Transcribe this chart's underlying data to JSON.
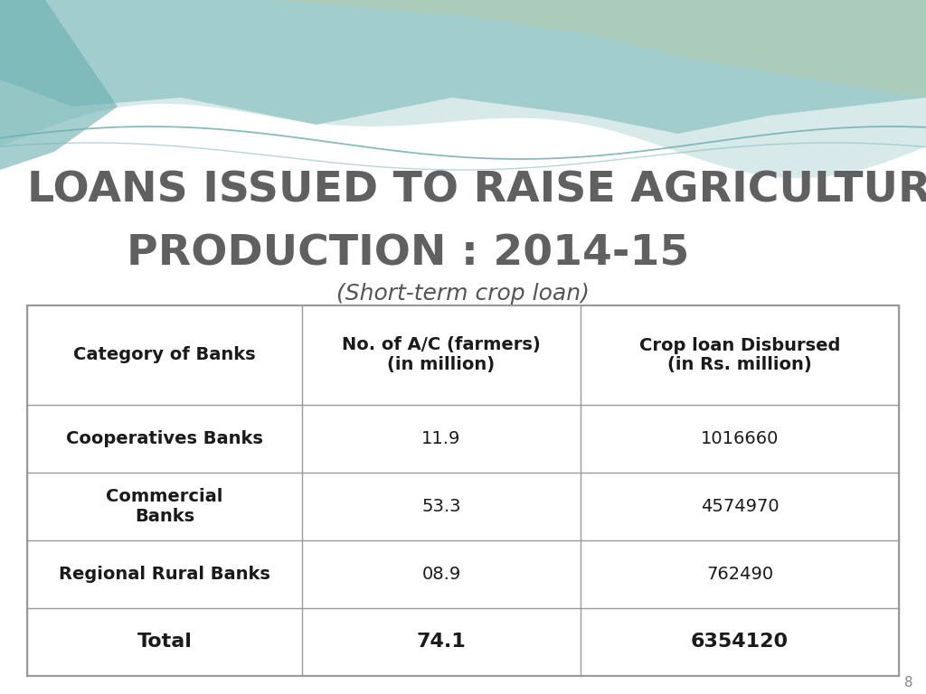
{
  "title_line1": "LOANS ISSUED TO RAISE AGRICULTURE",
  "title_line2": "PRODUCTION : 2014-15",
  "subtitle": "(Short-term crop loan)",
  "col_headers": [
    "Category of Banks",
    "No. of A/C (farmers)\n(in million)",
    "Crop loan Disbursed\n(in Rs. million)"
  ],
  "rows": [
    [
      "Cooperatives Banks",
      "11.9",
      "1016660"
    ],
    [
      "Commercial\nBanks",
      "53.3",
      "4574970"
    ],
    [
      "Regional Rural Banks",
      "08.9",
      "762490"
    ],
    [
      "Total",
      "74.1",
      "6354120"
    ]
  ],
  "bg_color": "#e8e8e8",
  "title_color": "#666666",
  "table_text_color": "#1a1a1a",
  "page_number": "8",
  "wave_teal": "#7bbfbf",
  "wave_olive": "#b8c9a0",
  "wave_light": "#c8dede"
}
